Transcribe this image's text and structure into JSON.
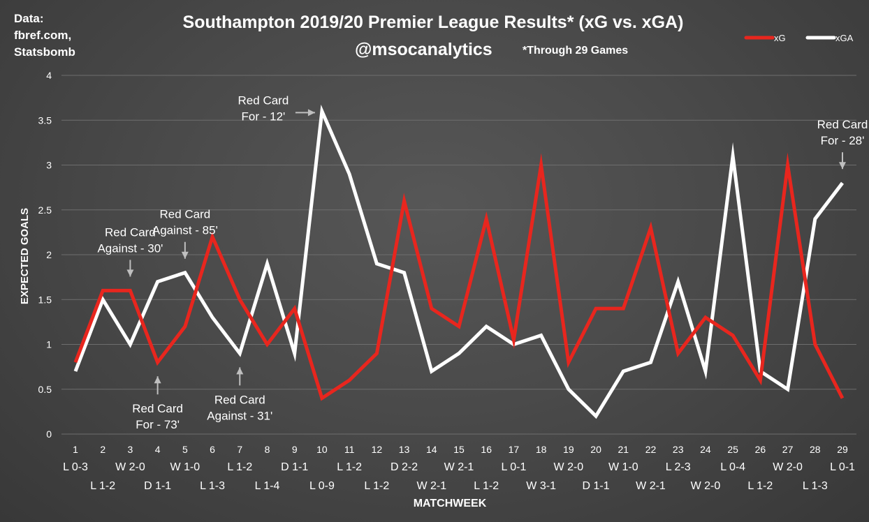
{
  "source": {
    "line1": "Data:",
    "line2": "fbref.com,",
    "line3": "Statsbomb"
  },
  "chart_data": {
    "type": "line",
    "title": "Southampton 2019/20 Premier League Results* (xG vs. xGA)",
    "subtitle_handle": "@msocanalytics",
    "subtitle_note": "*Through 29 Games",
    "xlabel": "MATCHWEEK",
    "ylabel": "EXPECTED GOALS",
    "ylim": [
      0,
      4
    ],
    "yticks": [
      "0",
      "0.5",
      "1",
      "1.5",
      "2",
      "2.5",
      "3",
      "3.5",
      "4"
    ],
    "grid": "horizontal",
    "legend_position": "top-right",
    "x": [
      "1",
      "2",
      "3",
      "4",
      "5",
      "6",
      "7",
      "8",
      "9",
      "10",
      "11",
      "12",
      "13",
      "14",
      "15",
      "16",
      "17",
      "18",
      "19",
      "20",
      "21",
      "22",
      "23",
      "24",
      "25",
      "26",
      "27",
      "28",
      "29"
    ],
    "results": [
      "L 0-3",
      "L 1-2",
      "W 2-0",
      "D 1-1",
      "W 1-0",
      "L 1-3",
      "L 1-2",
      "L 1-4",
      "D 1-1",
      "L 0-9",
      "L 1-2",
      "L 1-2",
      "D 2-2",
      "W 2-1",
      "W 2-1",
      "L 1-2",
      "L 0-1",
      "W 3-1",
      "W 2-0",
      "D 1-1",
      "W 1-0",
      "W 2-1",
      "L 2-3",
      "W 2-0",
      "L 0-4",
      "L 1-2",
      "W 2-0",
      "L 1-3",
      "L 0-1"
    ],
    "series": [
      {
        "name": "xG",
        "color": "#e8261e",
        "values": [
          0.8,
          1.6,
          1.6,
          0.8,
          1.2,
          2.2,
          1.5,
          1.0,
          1.4,
          0.4,
          0.6,
          0.9,
          2.6,
          1.4,
          1.2,
          2.4,
          1.05,
          3.0,
          0.8,
          1.4,
          1.4,
          2.3,
          0.9,
          1.3,
          1.1,
          0.6,
          3.0,
          1.0,
          0.4
        ]
      },
      {
        "name": "xGA",
        "color": "#ffffff",
        "values": [
          0.7,
          1.5,
          1.0,
          1.7,
          1.8,
          1.3,
          0.9,
          1.9,
          0.9,
          3.6,
          2.9,
          1.9,
          1.8,
          0.7,
          0.9,
          1.2,
          1.0,
          1.1,
          0.5,
          0.2,
          0.7,
          0.8,
          1.7,
          0.7,
          3.1,
          0.7,
          0.5,
          2.4,
          2.8
        ]
      }
    ],
    "annotations": [
      {
        "matchweek": 3,
        "value": 1.6,
        "line1": "Red Card",
        "line2": "Against - 30'",
        "side": "above"
      },
      {
        "matchweek": 4,
        "value": 0.8,
        "line1": "Red Card",
        "line2": "For - 73'",
        "side": "below"
      },
      {
        "matchweek": 5,
        "value": 1.8,
        "line1": "Red Card",
        "line2": "Against - 85'",
        "side": "above"
      },
      {
        "matchweek": 7,
        "value": 0.9,
        "line1": "Red Card",
        "line2": "Against - 31'",
        "side": "below"
      },
      {
        "matchweek": 10,
        "value": 3.6,
        "line1": "Red Card",
        "line2": "For - 12'",
        "side": "left"
      },
      {
        "matchweek": 29,
        "value": 2.8,
        "line1": "Red Card",
        "line2": "For - 28'",
        "side": "above"
      }
    ]
  }
}
